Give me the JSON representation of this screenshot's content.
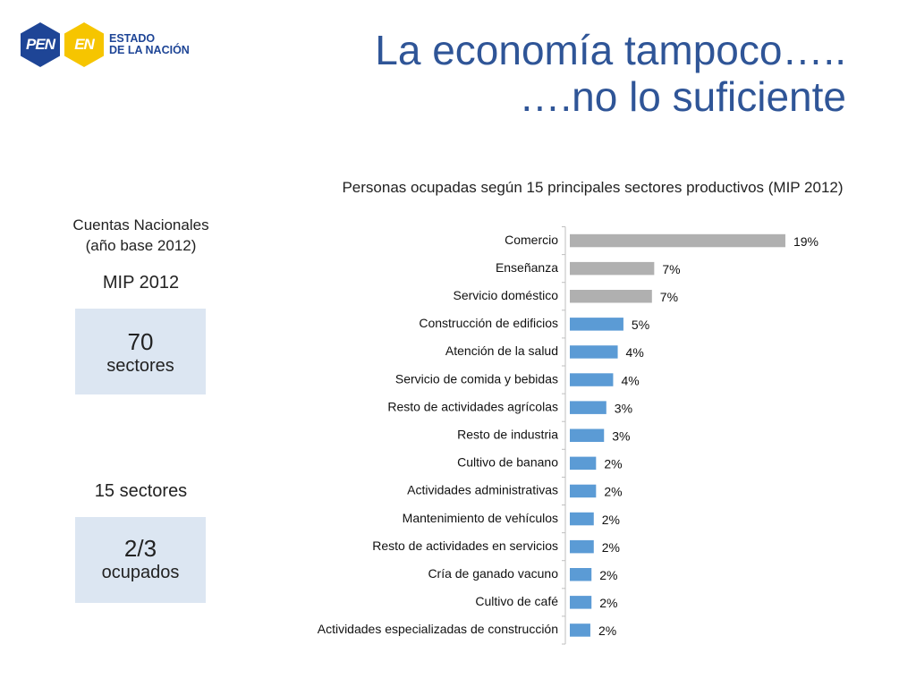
{
  "logo": {
    "pen": "PEN",
    "en": "EN",
    "line1": "ESTADO",
    "line2": "DE LA NACIÓN"
  },
  "title": {
    "line1": "La economía tampoco…..",
    "line2": "….no lo suficiente"
  },
  "side": {
    "cuentas_line1": "Cuentas Nacionales",
    "cuentas_line2": "(año base 2012)",
    "mip": "MIP 2012",
    "box1_number": "70",
    "box1_label": "sectores",
    "sectores15": "15 sectores",
    "box2_number": "2/3",
    "box2_label": "ocupados"
  },
  "colors": {
    "gray_bar": "#b0b0b0",
    "blue_bar": "#5b9bd5",
    "box_bg": "#dce6f2",
    "title": "#2f5597",
    "logo_blue": "#1e4596",
    "logo_yellow": "#f6c500"
  },
  "chart_data": {
    "type": "bar",
    "orientation": "horizontal",
    "title": "Personas ocupadas según 15 principales sectores productivos (MIP 2012)",
    "categories": [
      "Comercio",
      "Enseñanza",
      "Servicio doméstico",
      "Construcción de edificios",
      "Atención de la salud",
      "Servicio de comida y bebidas",
      "Resto de actividades agrícolas",
      "Resto de industria",
      "Cultivo de banano",
      "Actividades administrativas",
      "Mantenimiento de vehículos",
      "Resto de actividades en servicios",
      "Cría de ganado vacuno",
      "Cultivo de café",
      "Actividades especializadas de construcción"
    ],
    "values": [
      18.9,
      7.4,
      7.2,
      4.7,
      4.2,
      3.8,
      3.2,
      3.0,
      2.3,
      2.3,
      2.1,
      2.1,
      1.9,
      1.9,
      1.8
    ],
    "labels": [
      "19%",
      "7%",
      "7%",
      "5%",
      "4%",
      "4%",
      "3%",
      "3%",
      "2%",
      "2%",
      "2%",
      "2%",
      "2%",
      "2%",
      "2%"
    ],
    "bar_colors": [
      "gray",
      "gray",
      "gray",
      "blue",
      "blue",
      "blue",
      "blue",
      "blue",
      "blue",
      "blue",
      "blue",
      "blue",
      "blue",
      "blue",
      "blue"
    ],
    "xlim": [
      0,
      20
    ],
    "grid": false,
    "legend": "none"
  }
}
